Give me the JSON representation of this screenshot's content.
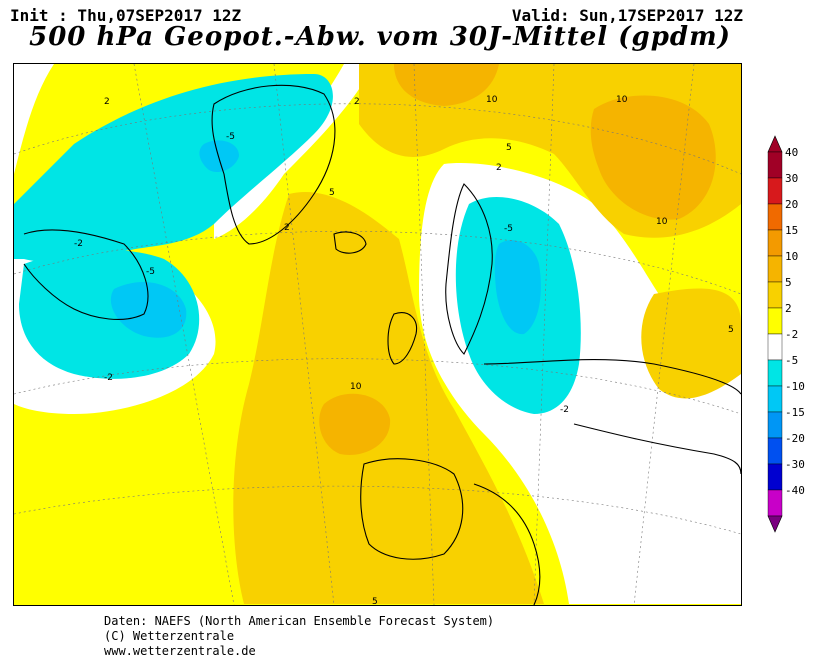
{
  "header": {
    "init": "Init : Thu,07SEP2017 12Z",
    "valid": "Valid: Sun,17SEP2017 12Z",
    "title": "500 hPa Geopot.-Abw. vom 30J-Mittel (gpdm)"
  },
  "colorscale": {
    "entries": [
      {
        "label": "40",
        "color": "#a00026"
      },
      {
        "label": "30",
        "color": "#d7191c"
      },
      {
        "label": "20",
        "color": "#f06a00"
      },
      {
        "label": "15",
        "color": "#f39a00"
      },
      {
        "label": "10",
        "color": "#f5b400"
      },
      {
        "label": "5",
        "color": "#f8d100"
      },
      {
        "label": "2",
        "color": "#ffff00"
      },
      {
        "label": "-2",
        "color": "#ffffff"
      },
      {
        "label": "-5",
        "color": "#00e5e5"
      },
      {
        "label": "-10",
        "color": "#00c8f5"
      },
      {
        "label": "-15",
        "color": "#0096f5"
      },
      {
        "label": "-20",
        "color": "#0050f0"
      },
      {
        "label": "-30",
        "color": "#0000d0"
      },
      {
        "label": "-40",
        "color": "#c800c8"
      },
      {
        "label": "",
        "color": "#7a0080"
      }
    ]
  },
  "map": {
    "contour_labels": [
      {
        "text": "2",
        "tag": "nw-atlantic"
      },
      {
        "text": "-5",
        "tag": "greenland"
      },
      {
        "text": "-2",
        "tag": "labrador"
      },
      {
        "text": "-5",
        "tag": "labrador-low"
      },
      {
        "text": "-2",
        "tag": "newfoundland"
      },
      {
        "text": "2",
        "tag": "greenland-east"
      },
      {
        "text": "5",
        "tag": "iceland-west"
      },
      {
        "text": "2",
        "tag": "denmark-strait"
      },
      {
        "text": "10",
        "tag": "north-pole"
      },
      {
        "text": "5",
        "tag": "svalbard"
      },
      {
        "text": "2",
        "tag": "barents"
      },
      {
        "text": "10",
        "tag": "siberia"
      },
      {
        "text": "10",
        "tag": "siberia-south"
      },
      {
        "text": "-5",
        "tag": "scandinavia"
      },
      {
        "text": "-2",
        "tag": "baltic"
      },
      {
        "text": "10",
        "tag": "biscay"
      },
      {
        "text": "5",
        "tag": "caspian"
      },
      {
        "text": "5",
        "tag": "africa"
      }
    ]
  },
  "footer": {
    "line1": "Daten: NAEFS (North American Ensemble Forecast System)",
    "line2": "(C) Wetterzentrale",
    "line3": "www.wetterzentrale.de"
  }
}
